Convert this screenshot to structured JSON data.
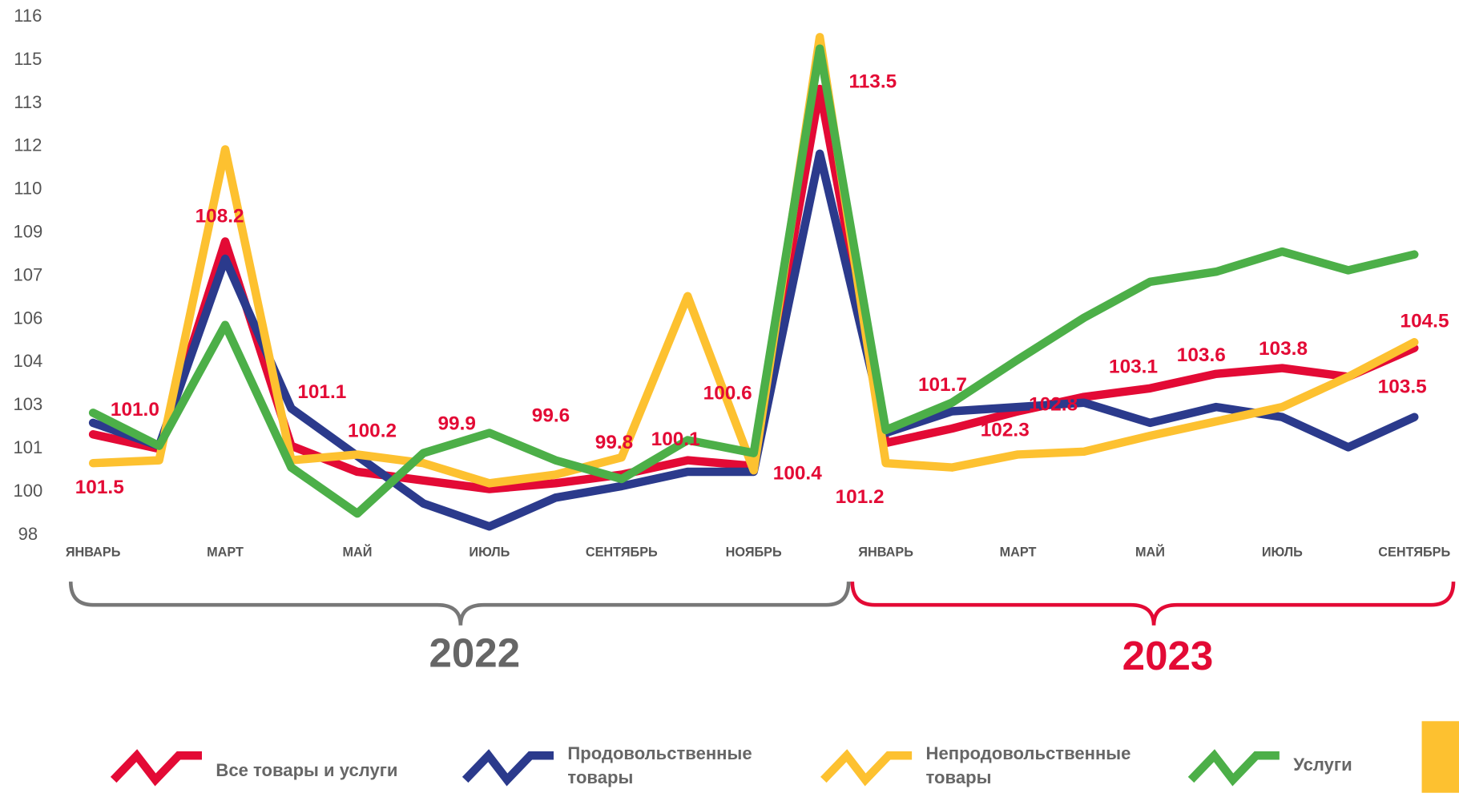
{
  "chart_data": {
    "type": "line",
    "categories": [
      "ЯНВАРЬ",
      null,
      "МАРТ",
      null,
      "МАЙ",
      null,
      "ИЮЛЬ",
      null,
      "СЕНТЯБРЬ",
      null,
      "НОЯБРЬ",
      null,
      "ЯНВАРЬ",
      null,
      "МАРТ",
      null,
      "МАЙ",
      null,
      "ИЮЛЬ",
      null,
      "СЕНТЯБРЬ"
    ],
    "ylim": [
      98,
      116
    ],
    "yticks": [
      98,
      {
        "value": 99.5,
        "label": "100"
      },
      101,
      {
        "value": 102.5,
        "label": "103"
      },
      104,
      {
        "value": 105.5,
        "label": "106"
      },
      107,
      {
        "value": 108.5,
        "label": "109"
      },
      110,
      {
        "value": 111.5,
        "label": "112"
      },
      113,
      {
        "value": 114.5,
        "label": "115"
      },
      116
    ],
    "series": [
      {
        "name": "Все товары и услуги",
        "color": "#e30a35",
        "values": [
          101.5,
          101.0,
          108.2,
          101.1,
          100.2,
          99.9,
          99.6,
          99.8,
          100.1,
          100.6,
          100.4,
          113.5,
          101.2,
          101.7,
          102.3,
          102.8,
          103.1,
          103.6,
          103.8,
          103.5,
          104.5
        ],
        "value_labels": [
          "101.5",
          "101.0",
          "108.2",
          "101.1",
          "100.2",
          "99.9",
          "99.6",
          "99.8",
          "100.1",
          "100.6",
          "100.4",
          "113.5",
          "101.2",
          "101.7",
          "102.3",
          "102.8",
          "103.1",
          "103.6",
          "103.8",
          "103.5",
          "104.5"
        ]
      },
      {
        "name": "Продовольственные товары",
        "color": "#2b3a8c",
        "values": [
          101.9,
          101.1,
          107.6,
          102.4,
          100.75,
          99.1,
          98.3,
          99.3,
          99.7,
          100.2,
          100.2,
          111.25,
          101.55,
          102.3,
          102.45,
          102.6,
          101.9,
          102.45,
          102.1,
          101.05,
          102.1
        ]
      },
      {
        "name": "Непродовольственные товары",
        "color": "#fdc130",
        "values": [
          100.5,
          100.6,
          111.4,
          100.6,
          100.8,
          100.5,
          99.8,
          100.1,
          100.7,
          106.3,
          100.25,
          115.3,
          100.5,
          100.35,
          100.8,
          100.9,
          101.45,
          101.95,
          102.45,
          103.5,
          104.7
        ]
      },
      {
        "name": "Услуги",
        "color": "#4caf48",
        "values": [
          102.25,
          101.1,
          105.3,
          100.35,
          98.75,
          100.85,
          101.55,
          100.6,
          99.95,
          101.3,
          100.85,
          114.9,
          101.65,
          102.6,
          104.1,
          105.55,
          106.8,
          107.15,
          107.85,
          107.2,
          107.75
        ]
      }
    ],
    "annotations": [
      "2022",
      "2023"
    ]
  }
}
